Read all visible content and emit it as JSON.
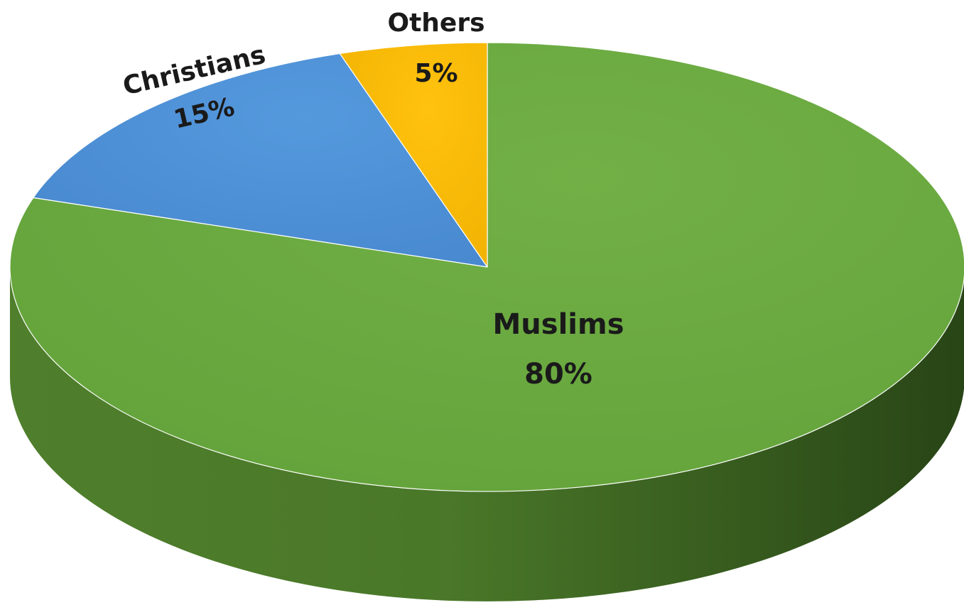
{
  "chart_data": {
    "type": "pie",
    "style": "3d",
    "title": "",
    "slices": [
      {
        "label": "Muslims",
        "value": 80,
        "value_label": "80%",
        "color": "#6aa83f"
      },
      {
        "label": "Christians",
        "value": 15,
        "value_label": "15%",
        "color": "#4d8fd4"
      },
      {
        "label": "Others",
        "value": 5,
        "value_label": "5%",
        "color": "#f5b800"
      }
    ],
    "labels_inside": true,
    "legend": "none"
  }
}
